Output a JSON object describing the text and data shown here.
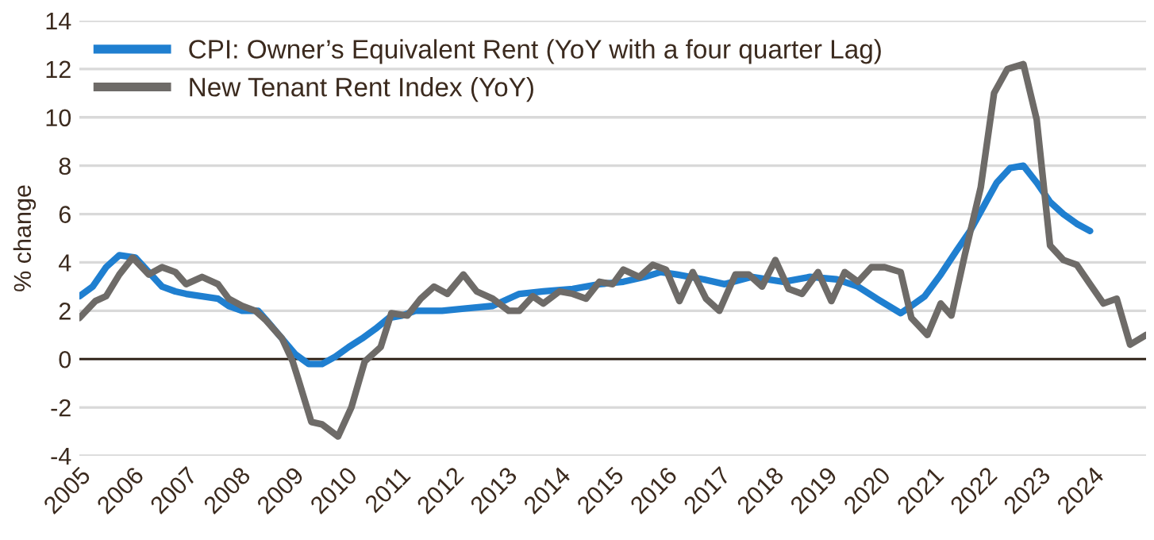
{
  "chart_data": {
    "type": "line",
    "ylabel": "% change",
    "xlim": [
      2005,
      2025
    ],
    "xticks": [
      2005,
      2006,
      2007,
      2008,
      2009,
      2010,
      2011,
      2012,
      2013,
      2014,
      2015,
      2016,
      2017,
      2018,
      2019,
      2020,
      2021,
      2022,
      2023,
      2024
    ],
    "ylim": [
      -4,
      14
    ],
    "yticks": [
      -4,
      -2,
      0,
      2,
      4,
      6,
      8,
      10,
      12,
      14
    ],
    "grid": "y",
    "legend": "top left",
    "marker": "none",
    "line_style": "solid",
    "ref_lines": [
      {
        "axis": "y",
        "value": 0,
        "color": "#2b1d12"
      }
    ],
    "series": [
      {
        "name": "CPI: Owner’s Equivalent Rent (YoY with a four quarter Lag)",
        "color": "#1f7fd0",
        "x": [
          2005.0,
          2005.25,
          2005.5,
          2005.75,
          2006.05,
          2006.3,
          2006.55,
          2006.8,
          2007.0,
          2007.3,
          2007.6,
          2007.8,
          2008.05,
          2008.35,
          2008.55,
          2008.8,
          2009.05,
          2009.3,
          2009.55,
          2009.8,
          2010.05,
          2010.3,
          2010.55,
          2010.8,
          2011.05,
          2011.3,
          2011.8,
          2012.25,
          2012.75,
          2013.25,
          2013.7,
          2014.25,
          2014.75,
          2015.2,
          2015.6,
          2015.9,
          2016.2,
          2016.7,
          2017.1,
          2017.6,
          2018.2,
          2018.7,
          2019.2,
          2019.6,
          2019.95,
          2020.4,
          2020.6,
          2020.85,
          2021.15,
          2021.45,
          2021.7,
          2021.95,
          2022.2,
          2022.45,
          2022.7,
          2022.95,
          2023.2,
          2023.45,
          2023.7,
          2023.95
        ],
        "values": [
          2.6,
          3.0,
          3.8,
          4.3,
          4.2,
          3.6,
          3.0,
          2.8,
          2.7,
          2.6,
          2.5,
          2.2,
          2.0,
          2.0,
          1.5,
          0.85,
          0.2,
          -0.2,
          -0.2,
          0.1,
          0.5,
          0.85,
          1.25,
          1.7,
          1.8,
          2.0,
          2.0,
          2.1,
          2.2,
          2.7,
          2.8,
          2.9,
          3.1,
          3.2,
          3.4,
          3.6,
          3.5,
          3.3,
          3.1,
          3.4,
          3.2,
          3.4,
          3.3,
          3.0,
          2.5,
          1.9,
          2.2,
          2.6,
          3.5,
          4.5,
          5.3,
          6.3,
          7.3,
          7.9,
          8.0,
          7.3,
          6.5,
          6.0,
          5.6,
          5.3
        ]
      },
      {
        "name": "New Tenant Rent Index (YoY)",
        "color": "#6e6b68",
        "x": [
          2005.0,
          2005.3,
          2005.5,
          2005.75,
          2006.0,
          2006.3,
          2006.55,
          2006.8,
          2007.0,
          2007.3,
          2007.6,
          2007.8,
          2008.05,
          2008.3,
          2008.5,
          2008.8,
          2009.0,
          2009.1,
          2009.35,
          2009.55,
          2009.85,
          2010.1,
          2010.35,
          2010.65,
          2010.85,
          2011.15,
          2011.4,
          2011.65,
          2011.9,
          2012.2,
          2012.45,
          2012.75,
          2013.05,
          2013.25,
          2013.5,
          2013.7,
          2014.0,
          2014.25,
          2014.5,
          2014.75,
          2015.0,
          2015.2,
          2015.5,
          2015.75,
          2016.0,
          2016.25,
          2016.5,
          2016.75,
          2017.0,
          2017.3,
          2017.55,
          2017.8,
          2018.05,
          2018.3,
          2018.55,
          2018.85,
          2019.1,
          2019.35,
          2019.6,
          2019.85,
          2020.1,
          2020.4,
          2020.6,
          2020.9,
          2021.15,
          2021.35,
          2021.6,
          2021.9,
          2022.15,
          2022.4,
          2022.7,
          2022.95,
          2023.2,
          2023.45,
          2023.7,
          2023.95,
          2024.2,
          2024.45,
          2024.7,
          2025.0
        ],
        "values": [
          1.7,
          2.4,
          2.6,
          3.5,
          4.2,
          3.5,
          3.8,
          3.6,
          3.1,
          3.4,
          3.1,
          2.5,
          2.2,
          2.0,
          1.6,
          0.85,
          -0.1,
          -0.8,
          -2.6,
          -2.7,
          -3.2,
          -2.0,
          -0.1,
          0.5,
          1.9,
          1.8,
          2.5,
          3.0,
          2.7,
          3.5,
          2.8,
          2.5,
          2.0,
          2.0,
          2.6,
          2.3,
          2.8,
          2.7,
          2.5,
          3.2,
          3.1,
          3.7,
          3.4,
          3.9,
          3.7,
          2.4,
          3.6,
          2.5,
          2.0,
          3.5,
          3.5,
          3.0,
          4.1,
          2.9,
          2.7,
          3.6,
          2.4,
          3.6,
          3.2,
          3.8,
          3.8,
          3.6,
          1.7,
          1.0,
          2.3,
          1.8,
          4.3,
          7.1,
          11.0,
          12.0,
          12.2,
          9.9,
          4.7,
          4.1,
          3.9,
          3.1,
          2.3,
          2.5,
          0.6,
          1.0
        ]
      }
    ]
  }
}
